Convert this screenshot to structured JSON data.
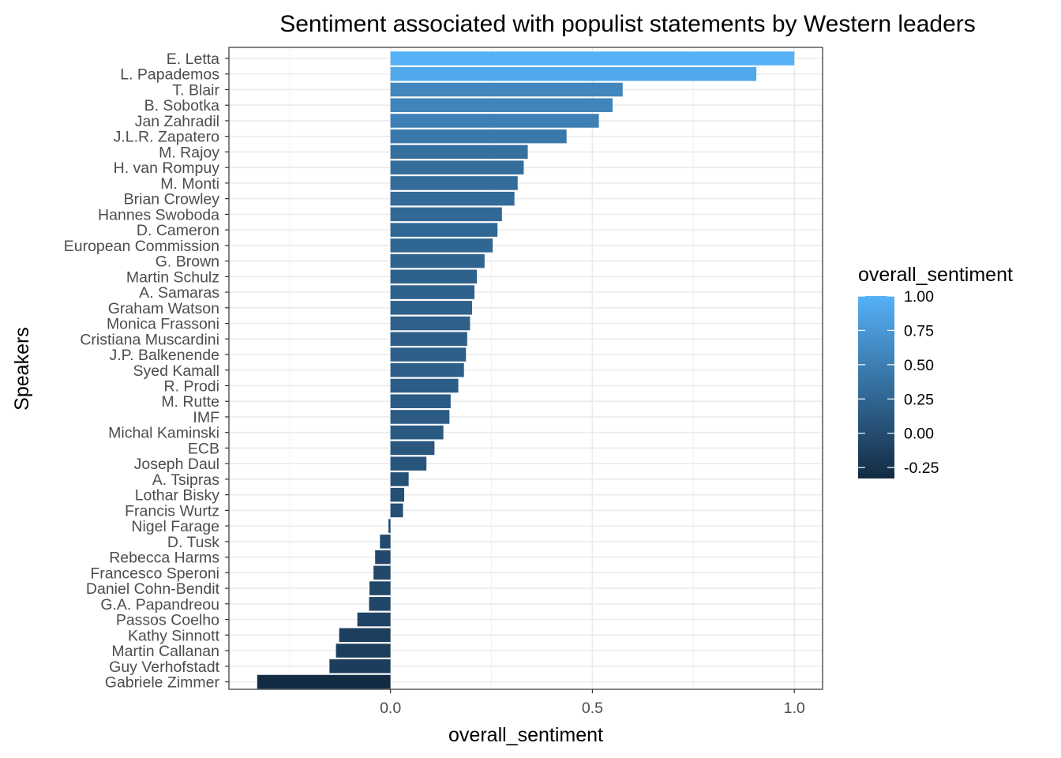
{
  "chart_data": {
    "type": "bar",
    "orientation": "horizontal",
    "title": "Sentiment associated with populist statements by Western leaders",
    "xlabel": "overall_sentiment",
    "ylabel": "Speakers",
    "xlim": [
      -0.4,
      1.07
    ],
    "x_ticks": [
      {
        "value": 0.0,
        "label": "0.0"
      },
      {
        "value": 0.5,
        "label": "0.5"
      },
      {
        "value": 1.0,
        "label": "1.0"
      }
    ],
    "grid": true,
    "legend": {
      "title": "overall_sentiment",
      "placement": "right",
      "min": -0.33,
      "max": 1.0,
      "color_low": "#132b43",
      "color_high": "#56b1f7",
      "ticks": [
        {
          "value": 1.0,
          "label": "1.00"
        },
        {
          "value": 0.75,
          "label": "0.75"
        },
        {
          "value": 0.5,
          "label": "0.50"
        },
        {
          "value": 0.25,
          "label": "0.25"
        },
        {
          "value": 0.0,
          "label": "0.00"
        },
        {
          "value": -0.25,
          "label": "-0.25"
        }
      ]
    },
    "categories": [
      "E. Letta",
      "L. Papademos",
      "T. Blair",
      "B. Sobotka",
      "Jan Zahradil",
      "J.L.R. Zapatero",
      "M. Rajoy",
      "H. van Rompuy",
      "M. Monti",
      "Brian Crowley",
      "Hannes Swoboda",
      "D. Cameron",
      "European Commission",
      "G. Brown",
      "Martin Schulz",
      "A. Samaras",
      "Graham Watson",
      "Monica Frassoni",
      "Cristiana Muscardini",
      "J.P. Balkenende",
      "Syed Kamall",
      "R. Prodi",
      "M. Rutte",
      "IMF",
      "Michal Kaminski",
      "ECB",
      "Joseph Daul",
      "A. Tsipras",
      "Lothar Bisky",
      "Francis Wurtz",
      "Nigel Farage",
      "D. Tusk",
      "Rebecca Harms",
      "Francesco Speroni",
      "Daniel Cohn-Bendit",
      "G.A. Papandreou",
      "Passos Coelho",
      "Kathy Sinnott",
      "Martin Callanan",
      "Guy Verhofstadt",
      "Gabriele Zimmer"
    ],
    "values": [
      1.0,
      0.906,
      0.575,
      0.55,
      0.516,
      0.436,
      0.34,
      0.33,
      0.315,
      0.307,
      0.276,
      0.265,
      0.253,
      0.233,
      0.214,
      0.208,
      0.202,
      0.197,
      0.19,
      0.187,
      0.182,
      0.168,
      0.149,
      0.146,
      0.131,
      0.109,
      0.089,
      0.045,
      0.034,
      0.031,
      -0.005,
      -0.026,
      -0.038,
      -0.042,
      -0.052,
      -0.053,
      -0.082,
      -0.127,
      -0.135,
      -0.151,
      -0.33
    ]
  }
}
